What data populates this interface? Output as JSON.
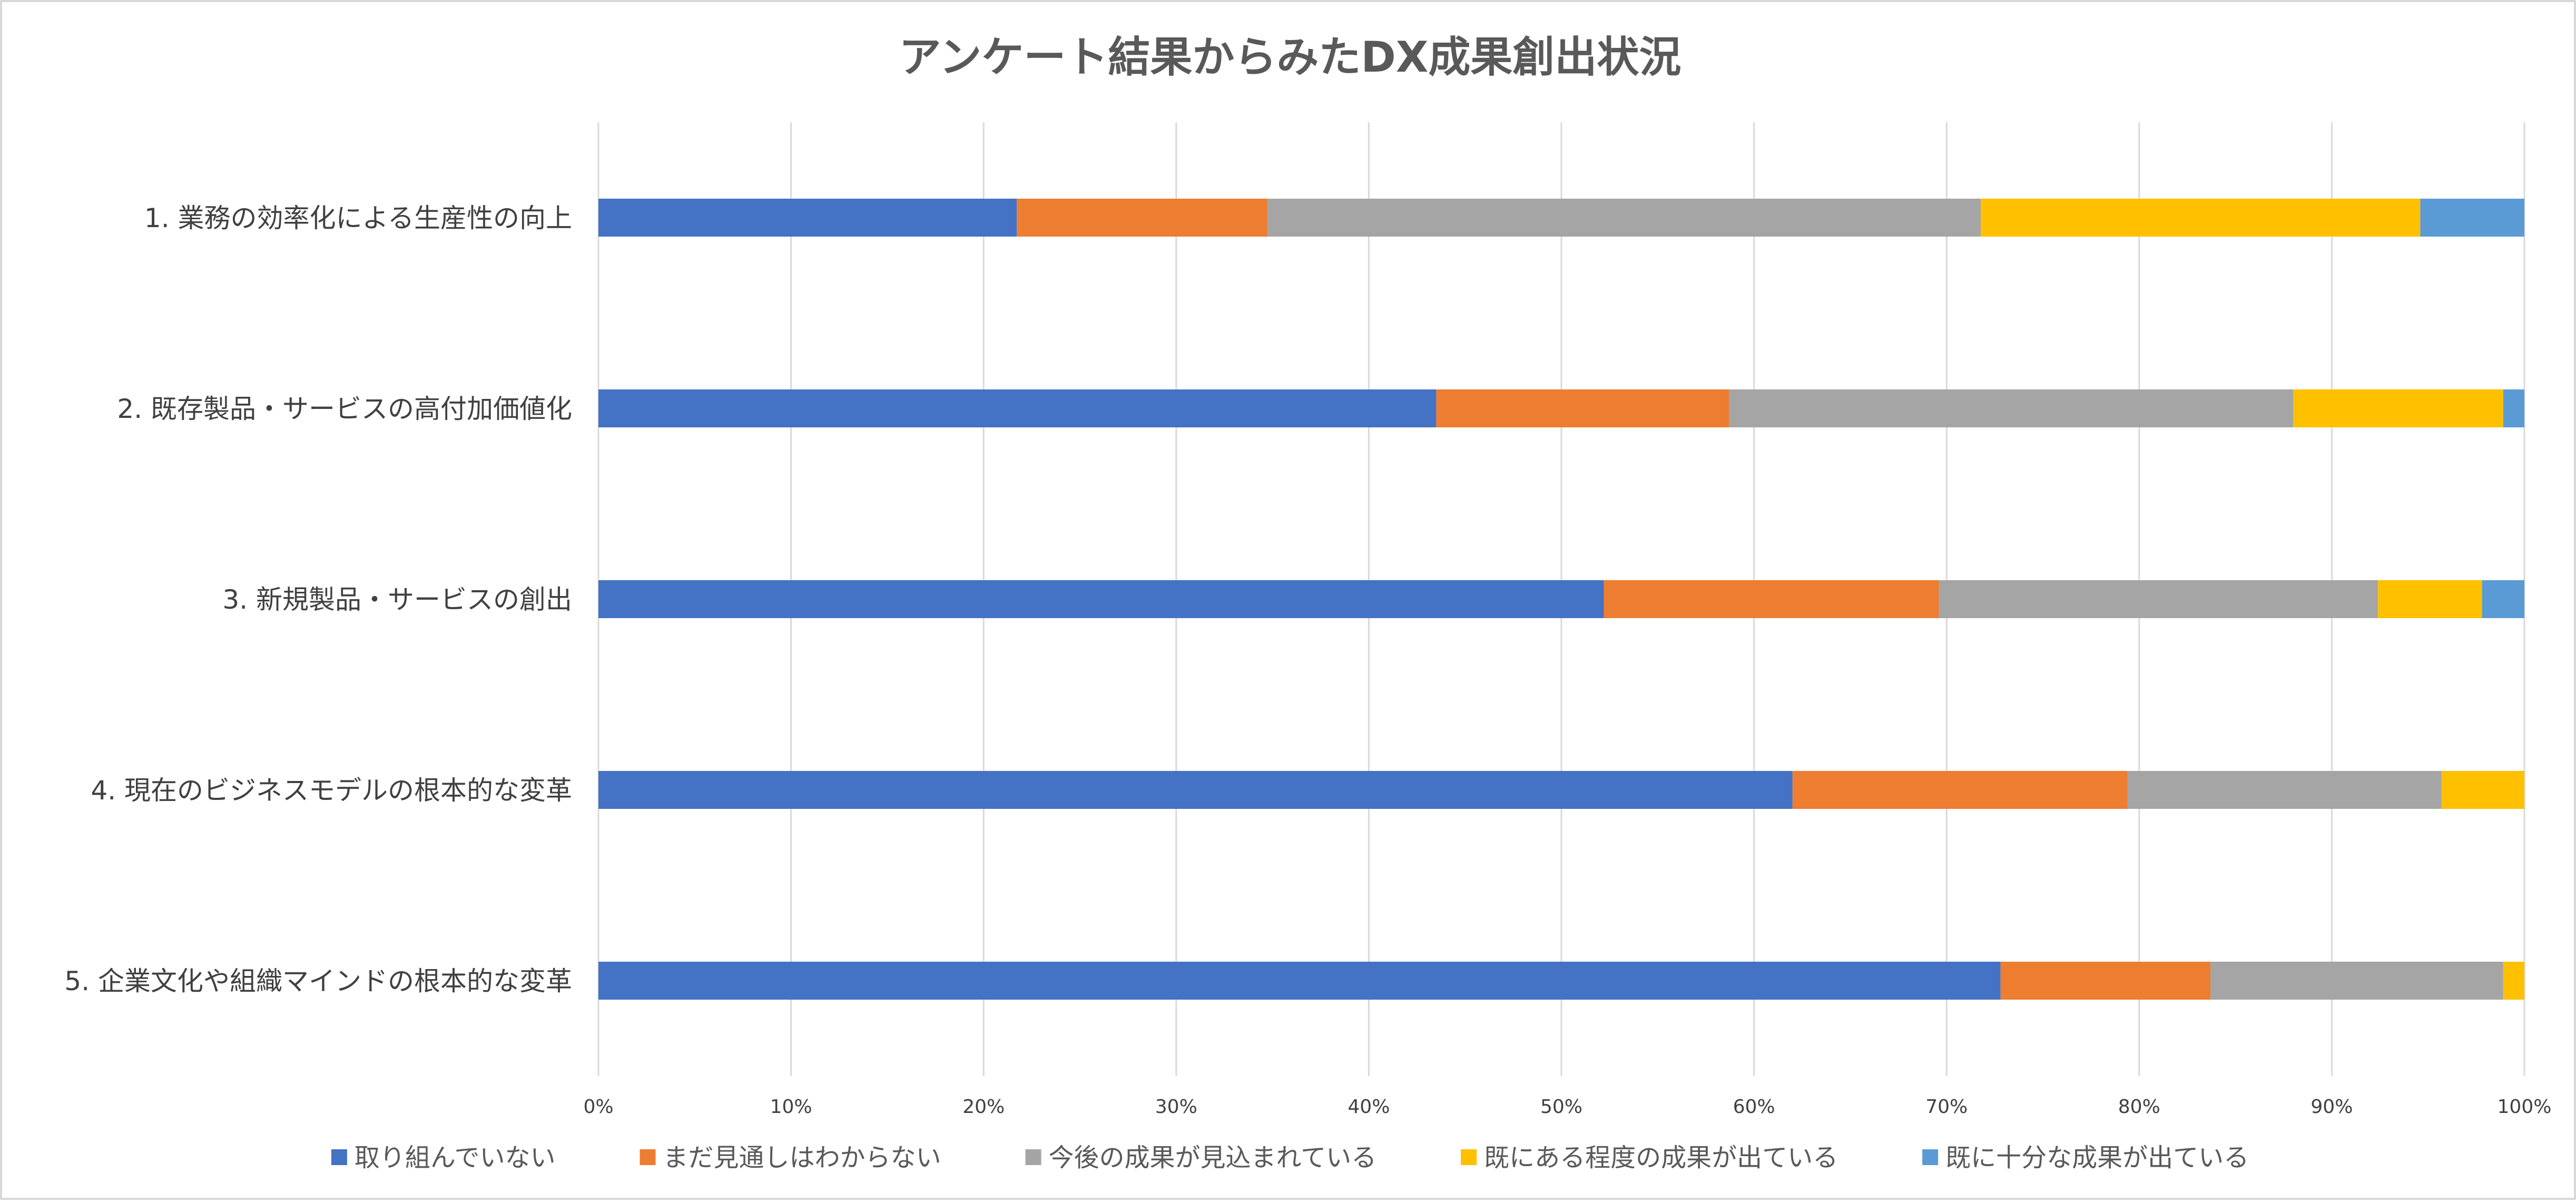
{
  "chart_data": {
    "type": "bar",
    "orientation": "horizontal",
    "stacked": "percent",
    "title": "アンケート結果からみたDX成果創出状況",
    "categories": [
      "1. 業務の効率化による生産性の向上",
      "2. 既存製品・サービスの高付加価値化",
      "3. 新規製品・サービスの創出",
      "4. 現在のビジネスモデルの根本的な変革",
      "5. 企業文化や組織マインドの根本的な変革"
    ],
    "series": [
      {
        "name": "取り組んでいない",
        "color": "#4472C4",
        "values": [
          21.7,
          43.5,
          52.2,
          62.0,
          72.8
        ]
      },
      {
        "name": "まだ見通しはわからない",
        "color": "#ED7D31",
        "values": [
          13.0,
          15.2,
          17.4,
          17.4,
          10.9
        ]
      },
      {
        "name": "今後の成果が見込まれている",
        "color": "#A5A5A5",
        "values": [
          37.0,
          29.3,
          22.8,
          16.3,
          15.2
        ]
      },
      {
        "name": "既にある程度の成果が出ている",
        "color": "#FFC000",
        "values": [
          22.8,
          10.9,
          5.4,
          4.3,
          1.1
        ]
      },
      {
        "name": "既に十分な成果が出ている",
        "color": "#5B9BD5",
        "values": [
          5.4,
          1.1,
          2.2,
          0.0,
          0.0
        ]
      }
    ],
    "x_ticks": [
      "0%",
      "10%",
      "20%",
      "30%",
      "40%",
      "50%",
      "60%",
      "70%",
      "80%",
      "90%",
      "100%"
    ],
    "xlim": [
      0,
      100
    ],
    "grid": "vertical",
    "legend": "bottom"
  }
}
